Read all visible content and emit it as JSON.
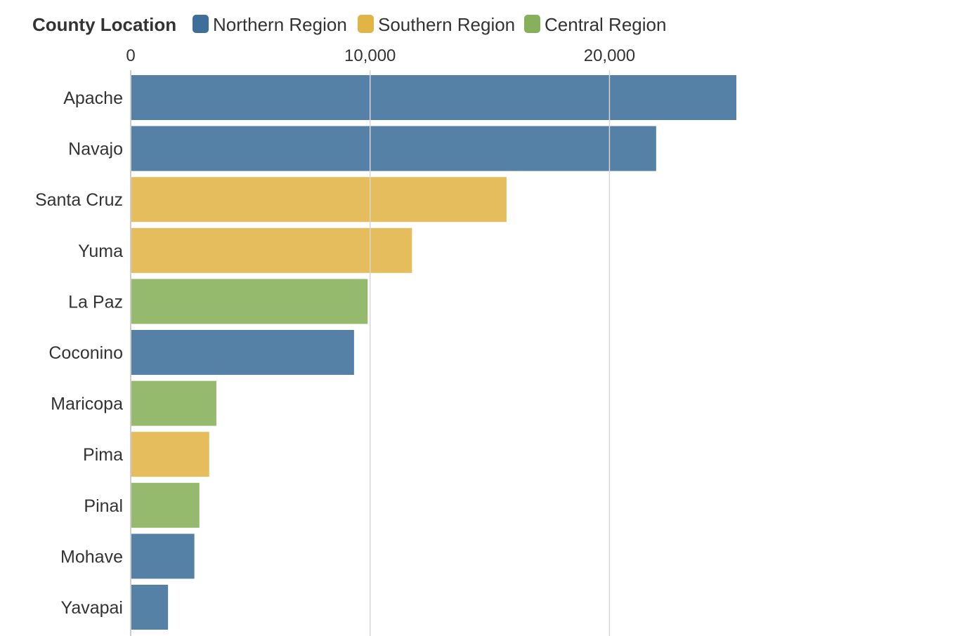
{
  "legend": {
    "title": "County Location",
    "items": [
      {
        "label": "Northern Region",
        "color": "#3e6f9b"
      },
      {
        "label": "Southern Region",
        "color": "#e2b445"
      },
      {
        "label": "Central Region",
        "color": "#86b05a"
      }
    ]
  },
  "chart_data": {
    "type": "bar",
    "orientation": "horizontal",
    "title": "",
    "xlabel": "",
    "ylabel": "",
    "xlim": [
      0,
      25300
    ],
    "ticks": [
      0,
      10000,
      20000
    ],
    "tick_labels": [
      "0",
      "10,000",
      "20,000"
    ],
    "grid": true,
    "legend_title": "County Location",
    "legend_position": "top",
    "series": [
      {
        "name": "Northern Region",
        "color": "#3e6f9b"
      },
      {
        "name": "Southern Region",
        "color": "#e2b445"
      },
      {
        "name": "Central Region",
        "color": "#86b05a"
      }
    ],
    "categories": [
      "Apache",
      "Navajo",
      "Santa Cruz",
      "Yuma",
      "La Paz",
      "Coconino",
      "Maricopa",
      "Pima",
      "Pinal",
      "Mohave",
      "Yavapai"
    ],
    "values": [
      25300,
      21950,
      15700,
      11750,
      9900,
      9330,
      3580,
      3280,
      2870,
      2660,
      1560
    ],
    "groups": [
      "Northern Region",
      "Northern Region",
      "Southern Region",
      "Southern Region",
      "Central Region",
      "Northern Region",
      "Central Region",
      "Southern Region",
      "Central Region",
      "Northern Region",
      "Northern Region"
    ]
  }
}
